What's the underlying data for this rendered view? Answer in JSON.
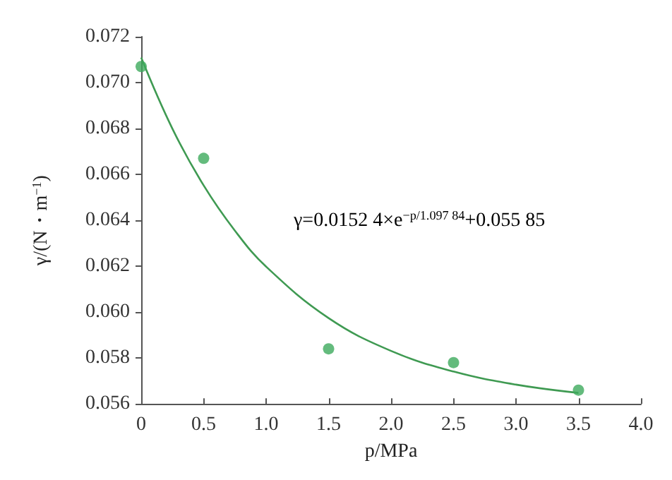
{
  "chart_data": {
    "type": "scatter",
    "xlabel": "p/MPa",
    "ylabel": "γ/(N・m$^{−1}$)",
    "xlim": [
      0,
      4.0
    ],
    "xticks": [
      {
        "value": 0,
        "label": "0"
      },
      {
        "value": 0.5,
        "label": "0.5"
      },
      {
        "value": 1,
        "label": "1.0"
      },
      {
        "value": 1.5,
        "label": "1.5"
      },
      {
        "value": 2,
        "label": "2.0"
      },
      {
        "value": 2.5,
        "label": "2.5"
      },
      {
        "value": 3,
        "label": "3.0"
      },
      {
        "value": 3.5,
        "label": "3.5"
      },
      {
        "value": 4,
        "label": "4.0"
      }
    ],
    "ylim": [
      0.056,
      0.072
    ],
    "yticks": [
      {
        "value": 0.056,
        "label": "0.056"
      },
      {
        "value": 0.058,
        "label": "0.058"
      },
      {
        "value": 0.06,
        "label": "0.060"
      },
      {
        "value": 0.062,
        "label": "0.062"
      },
      {
        "value": 0.064,
        "label": "0.064"
      },
      {
        "value": 0.066,
        "label": "0.066"
      },
      {
        "value": 0.068,
        "label": "0.068"
      },
      {
        "value": 0.07,
        "label": "0.070"
      },
      {
        "value": 0.072,
        "label": "0.072"
      }
    ],
    "grid": false,
    "series": [
      {
        "marker": "circle",
        "color": "#3daa5c",
        "x": [
          0,
          0.5,
          1.5,
          2.5,
          3.5
        ],
        "values": [
          0.0707,
          0.0667,
          0.0584,
          0.0578,
          0.0566
        ]
      },
      {
        "type": "line",
        "color": "#3f9a52",
        "x": [
          0,
          0.25,
          0.5,
          0.75,
          1.0,
          1.5,
          2.0,
          2.5,
          3.0,
          3.5
        ],
        "values": [
          0.07109,
          0.06799,
          0.06552,
          0.06355,
          0.06198,
          0.05974,
          0.05831,
          0.05741,
          0.05684,
          0.05648
        ]
      }
    ],
    "annotations": [
      "γ=0.0152 4×e$^{−p/1.097 84}$+0.055 85"
    ]
  }
}
